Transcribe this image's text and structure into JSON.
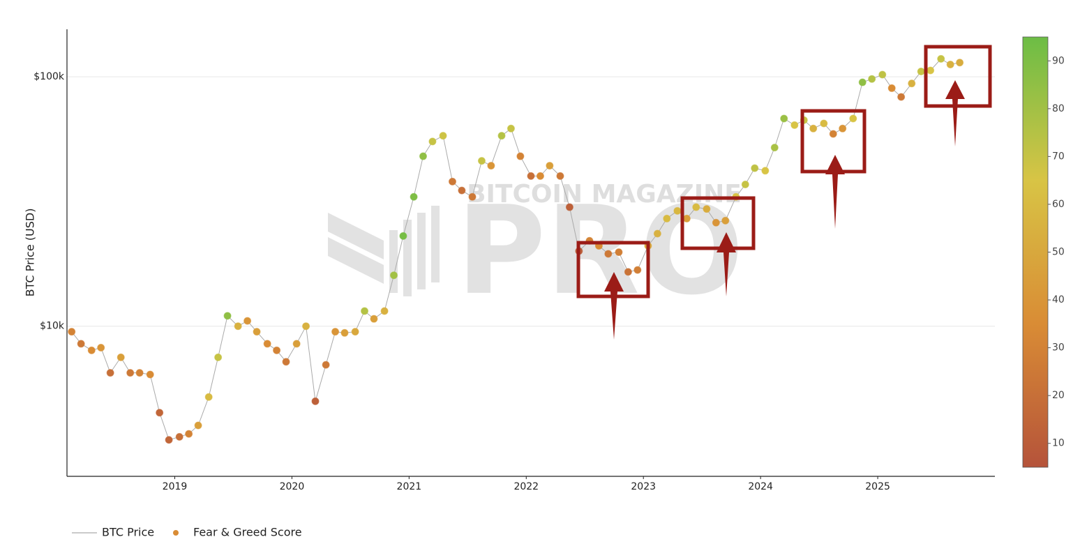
{
  "chart_data": {
    "type": "line-scatter",
    "y_axis_label": "BTC Price (USD)",
    "watermark": [
      "BITCOIN MAGAZINE",
      "PRO"
    ],
    "log_y": true,
    "grid": true,
    "xlim": [
      2018.08,
      2026.0
    ],
    "xticks": [
      2019,
      2020,
      2021,
      2022,
      2023,
      2024,
      2025
    ],
    "ylim": [
      2500,
      155000
    ],
    "yticks": [
      {
        "value": 10000,
        "label": "$10k"
      },
      {
        "value": 100000,
        "label": "$100k"
      }
    ],
    "colorbar": {
      "lim": [
        5,
        95
      ],
      "ticks": [
        10,
        20,
        30,
        40,
        50,
        60,
        70,
        80,
        90
      ],
      "colors": [
        "#b5533a",
        "#d98c35",
        "#d8c445",
        "#6cbd45"
      ]
    },
    "legend": "bottom",
    "x": [
      2018.12,
      2018.2,
      2018.29,
      2018.37,
      2018.45,
      2018.54,
      2018.62,
      2018.7,
      2018.79,
      2018.87,
      2018.95,
      2019.04,
      2019.12,
      2019.2,
      2019.29,
      2019.37,
      2019.45,
      2019.54,
      2019.62,
      2019.7,
      2019.79,
      2019.87,
      2019.95,
      2020.04,
      2020.12,
      2020.2,
      2020.29,
      2020.37,
      2020.45,
      2020.54,
      2020.62,
      2020.7,
      2020.79,
      2020.87,
      2020.95,
      2021.04,
      2021.12,
      2021.2,
      2021.29,
      2021.37,
      2021.45,
      2021.54,
      2021.62,
      2021.7,
      2021.79,
      2021.87,
      2021.95,
      2022.04,
      2022.12,
      2022.2,
      2022.29,
      2022.37,
      2022.45,
      2022.54,
      2022.62,
      2022.7,
      2022.79,
      2022.87,
      2022.95,
      2023.04,
      2023.12,
      2023.2,
      2023.29,
      2023.37,
      2023.45,
      2023.54,
      2023.62,
      2023.7,
      2023.79,
      2023.87,
      2023.95,
      2024.04,
      2024.12,
      2024.2,
      2024.29,
      2024.37,
      2024.45,
      2024.54,
      2024.62,
      2024.7,
      2024.79,
      2024.87,
      2024.95,
      2025.04,
      2025.12,
      2025.2,
      2025.29,
      2025.37,
      2025.45,
      2025.54,
      2025.62,
      2025.7
    ],
    "series": [
      {
        "name": "BTC Price",
        "color": "#aaaaaa",
        "values": [
          9500,
          8500,
          8000,
          8200,
          6500,
          7500,
          6500,
          6500,
          6400,
          4500,
          3500,
          3600,
          3700,
          4000,
          5200,
          7500,
          11000,
          10000,
          10500,
          9500,
          8500,
          8000,
          7200,
          8500,
          10000,
          5000,
          7000,
          9500,
          9400,
          9500,
          11500,
          10700,
          11500,
          16000,
          23000,
          33000,
          48000,
          55000,
          58000,
          38000,
          35000,
          33000,
          46000,
          44000,
          58000,
          62000,
          48000,
          40000,
          40000,
          44000,
          40000,
          30000,
          20000,
          22000,
          21000,
          19500,
          19800,
          16500,
          16800,
          21000,
          23500,
          27000,
          29000,
          27000,
          30000,
          29500,
          26000,
          26500,
          33000,
          37000,
          43000,
          42000,
          52000,
          68000,
          64000,
          67000,
          62000,
          65000,
          59000,
          62000,
          68000,
          95000,
          98000,
          102000,
          90000,
          83000,
          94000,
          105000,
          106000,
          118000,
          112000,
          114000
        ]
      },
      {
        "name": "Fear & Greed Score",
        "values": [
          30,
          25,
          35,
          40,
          20,
          45,
          25,
          30,
          35,
          15,
          15,
          20,
          30,
          45,
          60,
          70,
          85,
          55,
          40,
          45,
          35,
          30,
          25,
          45,
          55,
          12,
          25,
          40,
          45,
          50,
          75,
          45,
          55,
          80,
          92,
          90,
          85,
          70,
          68,
          25,
          20,
          25,
          70,
          40,
          75,
          70,
          30,
          20,
          35,
          45,
          25,
          12,
          10,
          30,
          35,
          25,
          28,
          22,
          28,
          50,
          55,
          60,
          58,
          45,
          60,
          52,
          40,
          45,
          65,
          70,
          72,
          65,
          78,
          82,
          65,
          70,
          55,
          60,
          30,
          40,
          65,
          85,
          75,
          72,
          35,
          25,
          55,
          70,
          65,
          70,
          55,
          52
        ]
      }
    ]
  }
}
